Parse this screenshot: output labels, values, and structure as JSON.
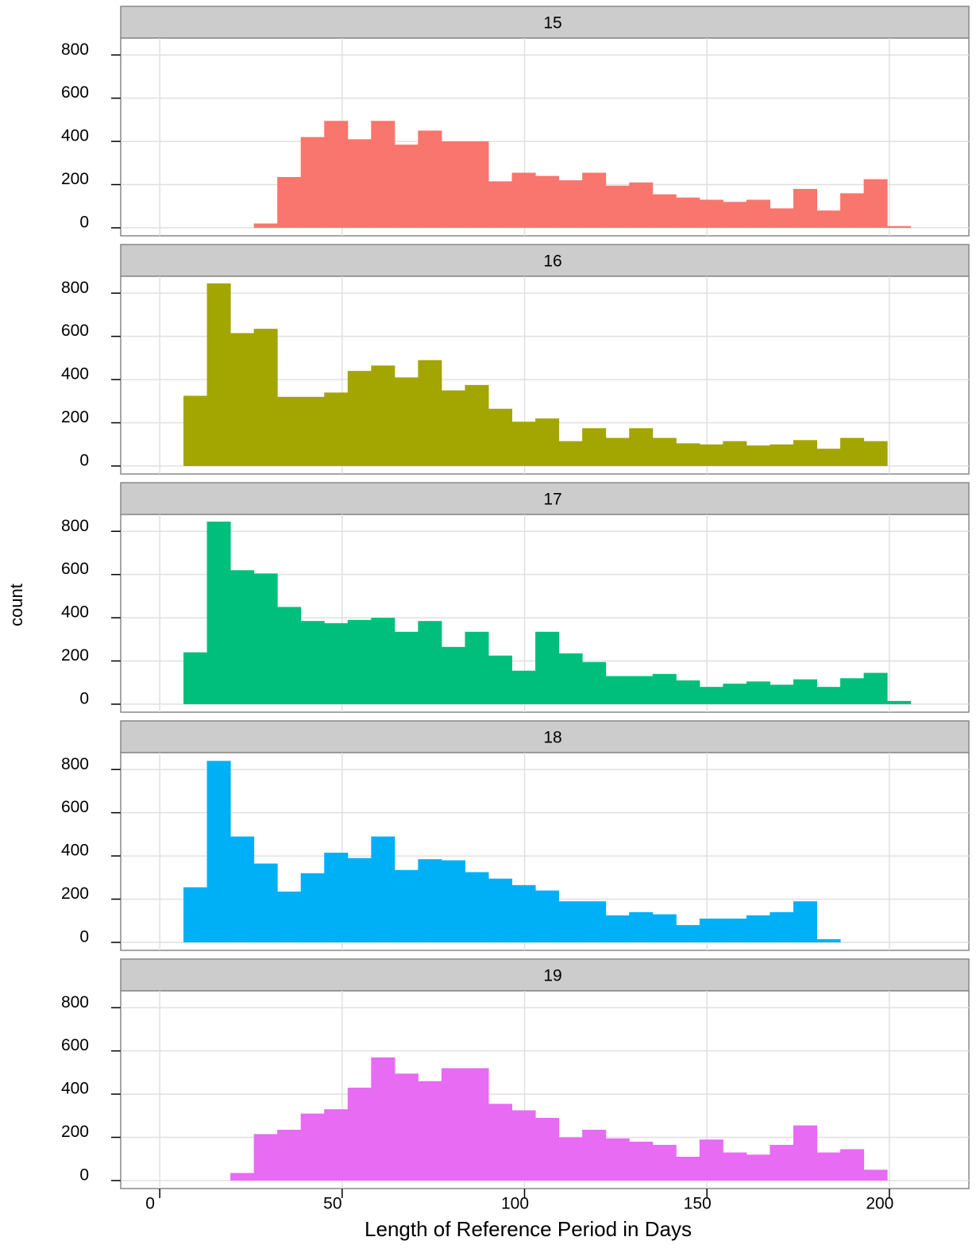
{
  "chart_data": {
    "type": "histogram",
    "x_label": "Length of Reference Period in Days",
    "y_label": "count",
    "bins": [
      6.5,
      12.93,
      19.36,
      25.79,
      32.22,
      38.65,
      45.08,
      51.51,
      57.94,
      64.37,
      70.8,
      77.23,
      83.66,
      90.09,
      96.52,
      102.95,
      109.38,
      115.81,
      122.24,
      128.67,
      135.1,
      141.53,
      147.96,
      154.39,
      160.82,
      167.25,
      173.68,
      180.11,
      186.54,
      192.97,
      199.4,
      205.83
    ],
    "xlim": [
      -10.7,
      221.8
    ],
    "xticks": [
      0,
      50,
      100,
      150,
      200
    ],
    "ylim": [
      -37,
      878
    ],
    "yticks": [
      0,
      200,
      400,
      600,
      800
    ],
    "grid": true,
    "series": [
      {
        "name": "15",
        "color": "#F8766D",
        "values": [
          0,
          0,
          0,
          20,
          235,
          420,
          495,
          410,
          495,
          385,
          450,
          400,
          400,
          215,
          255,
          240,
          220,
          255,
          195,
          210,
          155,
          140,
          130,
          120,
          130,
          90,
          180,
          80,
          160,
          225,
          8
        ]
      },
      {
        "name": "16",
        "color": "#A3A500",
        "values": [
          325,
          845,
          615,
          635,
          320,
          320,
          340,
          440,
          465,
          410,
          490,
          350,
          375,
          265,
          205,
          220,
          115,
          175,
          130,
          175,
          130,
          105,
          100,
          115,
          95,
          100,
          120,
          80,
          130,
          115,
          0
        ]
      },
      {
        "name": "17",
        "color": "#00BF7D",
        "values": [
          240,
          845,
          620,
          605,
          450,
          385,
          375,
          390,
          400,
          335,
          385,
          265,
          335,
          225,
          155,
          335,
          235,
          195,
          130,
          130,
          140,
          110,
          80,
          95,
          105,
          90,
          115,
          80,
          120,
          145,
          15
        ]
      },
      {
        "name": "18",
        "color": "#00B0F6",
        "values": [
          255,
          840,
          490,
          365,
          235,
          320,
          415,
          390,
          490,
          335,
          385,
          380,
          325,
          295,
          265,
          240,
          190,
          190,
          125,
          140,
          130,
          80,
          110,
          110,
          125,
          140,
          190,
          15,
          0,
          0,
          0
        ]
      },
      {
        "name": "19",
        "color": "#E76BF3",
        "values": [
          0,
          0,
          35,
          215,
          235,
          310,
          330,
          430,
          570,
          495,
          460,
          520,
          520,
          355,
          325,
          290,
          200,
          235,
          195,
          180,
          165,
          110,
          190,
          130,
          120,
          165,
          255,
          130,
          145,
          50,
          0
        ]
      }
    ]
  }
}
